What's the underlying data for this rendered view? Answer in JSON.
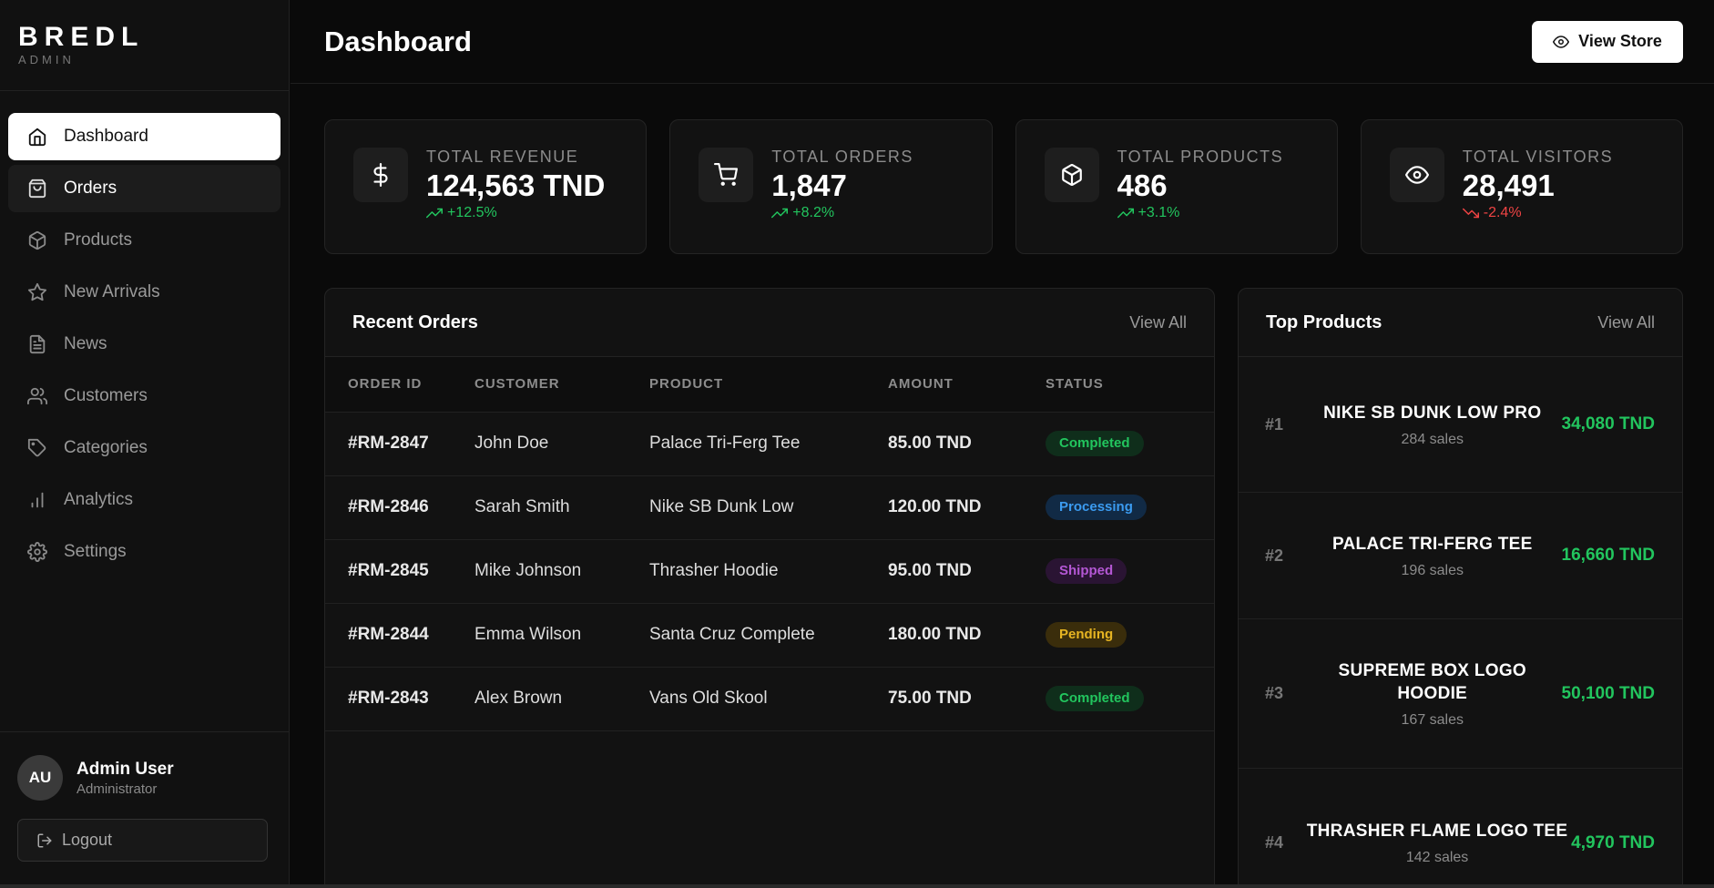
{
  "brand": {
    "name": "BREDL",
    "sub": "ADMIN"
  },
  "nav": [
    {
      "label": "Dashboard",
      "icon": "home-icon"
    },
    {
      "label": "Orders",
      "icon": "shopping-bag-icon"
    },
    {
      "label": "Products",
      "icon": "box-icon"
    },
    {
      "label": "New Arrivals",
      "icon": "star-icon"
    },
    {
      "label": "News",
      "icon": "document-icon"
    },
    {
      "label": "Customers",
      "icon": "users-icon"
    },
    {
      "label": "Categories",
      "icon": "tag-icon"
    },
    {
      "label": "Analytics",
      "icon": "bar-chart-icon"
    },
    {
      "label": "Settings",
      "icon": "gear-icon"
    }
  ],
  "user": {
    "initials": "AU",
    "name": "Admin User",
    "role": "Administrator",
    "logout_label": "Logout"
  },
  "header": {
    "title": "Dashboard",
    "view_store_label": "View Store"
  },
  "stats": [
    {
      "label": "TOTAL REVENUE",
      "value": "124,563 TND",
      "change": "+12.5%",
      "trend": "up",
      "icon": "dollar-icon"
    },
    {
      "label": "TOTAL ORDERS",
      "value": "1,847",
      "change": "+8.2%",
      "trend": "up",
      "icon": "cart-icon"
    },
    {
      "label": "TOTAL PRODUCTS",
      "value": "486",
      "change": "+3.1%",
      "trend": "up",
      "icon": "box-icon"
    },
    {
      "label": "TOTAL VISITORS",
      "value": "28,491",
      "change": "-2.4%",
      "trend": "down",
      "icon": "eye-icon"
    }
  ],
  "recent_orders": {
    "title": "Recent Orders",
    "view_all": "View All",
    "columns": [
      "ORDER ID",
      "CUSTOMER",
      "PRODUCT",
      "AMOUNT",
      "STATUS"
    ],
    "rows": [
      {
        "id": "#RM-2847",
        "customer": "John Doe",
        "product": "Palace Tri-Ferg Tee",
        "amount": "85.00 TND",
        "status": "Completed"
      },
      {
        "id": "#RM-2846",
        "customer": "Sarah Smith",
        "product": "Nike SB Dunk Low",
        "amount": "120.00 TND",
        "status": "Processing"
      },
      {
        "id": "#RM-2845",
        "customer": "Mike Johnson",
        "product": "Thrasher Hoodie",
        "amount": "95.00 TND",
        "status": "Shipped"
      },
      {
        "id": "#RM-2844",
        "customer": "Emma Wilson",
        "product": "Santa Cruz Complete",
        "amount": "180.00 TND",
        "status": "Pending"
      },
      {
        "id": "#RM-2843",
        "customer": "Alex Brown",
        "product": "Vans Old Skool",
        "amount": "75.00 TND",
        "status": "Completed"
      }
    ]
  },
  "status_colors": {
    "Completed": {
      "bg": "#0f2e1b",
      "fg": "#22c55e"
    },
    "Processing": {
      "bg": "#112a45",
      "fg": "#3b9bf0"
    },
    "Shipped": {
      "bg": "#2a1433",
      "fg": "#b457d4"
    },
    "Pending": {
      "bg": "#3a2d0b",
      "fg": "#e6b422"
    }
  },
  "top_products": {
    "title": "Top Products",
    "view_all": "View All",
    "items": [
      {
        "rank": "#1",
        "name": "NIKE SB DUNK LOW PRO",
        "sales": "284 sales",
        "revenue": "34,080 TND"
      },
      {
        "rank": "#2",
        "name": "PALACE TRI-FERG TEE",
        "sales": "196 sales",
        "revenue": "16,660 TND"
      },
      {
        "rank": "#3",
        "name": "SUPREME BOX LOGO HOODIE",
        "sales": "167 sales",
        "revenue": "50,100 TND"
      },
      {
        "rank": "#4",
        "name": "THRASHER FLAME LOGO TEE",
        "sales": "142 sales",
        "revenue": "4,970 TND"
      }
    ]
  },
  "colors": {
    "background": "#0a0a0a",
    "panel": "#121212",
    "positive": "#22c55e",
    "negative": "#ef4444"
  }
}
